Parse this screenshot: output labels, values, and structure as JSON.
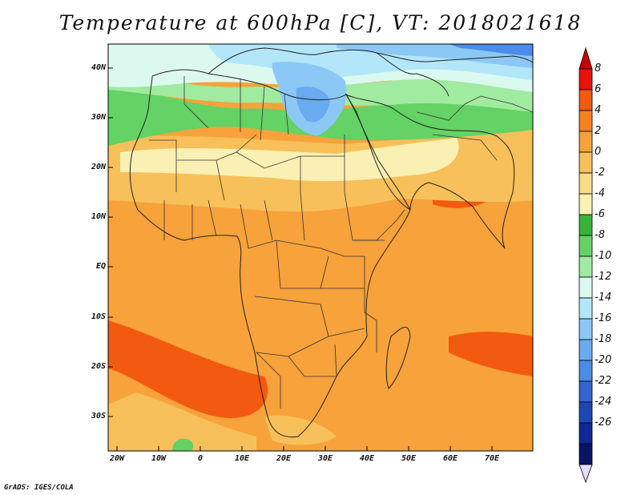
{
  "title": "Temperature at 600hPa [C], VT: 2018021618",
  "credit": "GrADS: IGES/COLA",
  "axes": {
    "y_labels": [
      "40N",
      "30N",
      "20N",
      "10N",
      "EQ",
      "10S",
      "20S",
      "30S"
    ],
    "x_labels": [
      "20W",
      "10W",
      "0",
      "10E",
      "20E",
      "30E",
      "40E",
      "50E",
      "60E",
      "70E"
    ]
  },
  "colorbar": {
    "labels": [
      "8",
      "6",
      "4",
      "2",
      "0",
      "-2",
      "-4",
      "-6",
      "-8",
      "-10",
      "-12",
      "-14",
      "-16",
      "-18",
      "-20",
      "-22",
      "-24",
      "-26"
    ],
    "colors": [
      "#e8140c",
      "#f25a0f",
      "#f5821e",
      "#f7a23a",
      "#f8c05a",
      "#f9dc88",
      "#fbf0b4",
      "#37b437",
      "#64d264",
      "#a0eba0",
      "#dcf9f0",
      "#b4e6fa",
      "#8cc8f5",
      "#69aaf0",
      "#4b8ce6",
      "#3264d2",
      "#1e46b4",
      "#0f2896",
      "#0a1464"
    ],
    "top_color": "#c80000",
    "bottom_color": "#e6dcff"
  },
  "colors": {
    "warm_ocean": "#f7a23a",
    "hot": "#f25a0f",
    "land_warm": "#f5821e",
    "sahara": "#fbf0b4",
    "mid": "#f8c05a",
    "green": "#64d264",
    "light_green": "#a0eba0",
    "light_cyan": "#dcf9f0",
    "blue": "#8cc8f5",
    "deep_blue": "#4b8ce6"
  }
}
